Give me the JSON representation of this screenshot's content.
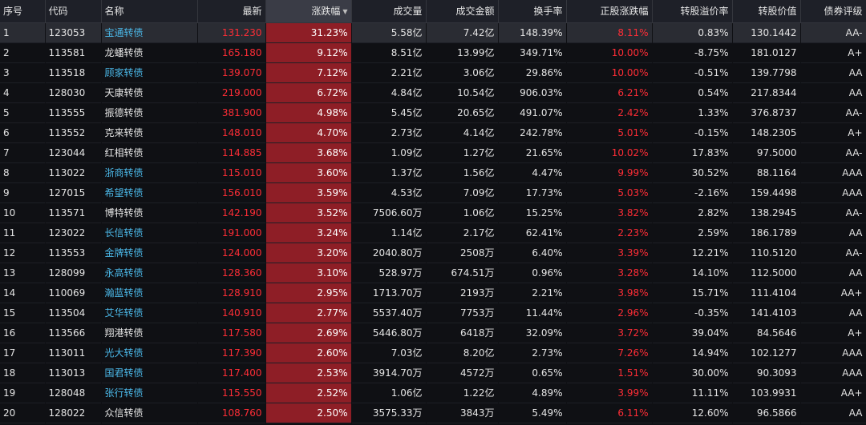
{
  "columns": [
    "序号",
    "代码",
    "名称",
    "最新",
    "涨跌幅",
    "成交量",
    "成交金额",
    "换手率",
    "正股涨跌幅",
    "转股溢价率",
    "转股价值",
    "债券评级"
  ],
  "sort_icon": "sort-desc-icon",
  "colors": {
    "up": "#ff2d36",
    "link": "#4bb8e8",
    "highlight": "#8e1e26",
    "header_bg": "#1e2028",
    "bg": "#0f1014"
  },
  "rows": [
    {
      "idx": "1",
      "code": "123053",
      "name": "宝通转债",
      "name_link": true,
      "price": "131.230",
      "change": "31.23%",
      "volume": "5.58亿",
      "amount": "7.42亿",
      "turnover": "148.39%",
      "stock_change": "8.11%",
      "premium": "0.83%",
      "conv_value": "130.1442",
      "rating": "AA-"
    },
    {
      "idx": "2",
      "code": "113581",
      "name": "龙蟠转债",
      "name_link": false,
      "price": "165.180",
      "change": "9.12%",
      "volume": "8.51亿",
      "amount": "13.99亿",
      "turnover": "349.71%",
      "stock_change": "10.00%",
      "premium": "-8.75%",
      "conv_value": "181.0127",
      "rating": "A+"
    },
    {
      "idx": "3",
      "code": "113518",
      "name": "顾家转债",
      "name_link": true,
      "price": "139.070",
      "change": "7.12%",
      "volume": "2.21亿",
      "amount": "3.06亿",
      "turnover": "29.86%",
      "stock_change": "10.00%",
      "premium": "-0.51%",
      "conv_value": "139.7798",
      "rating": "AA"
    },
    {
      "idx": "4",
      "code": "128030",
      "name": "天康转债",
      "name_link": false,
      "price": "219.000",
      "change": "6.72%",
      "volume": "4.84亿",
      "amount": "10.54亿",
      "turnover": "906.03%",
      "stock_change": "6.21%",
      "premium": "0.54%",
      "conv_value": "217.8344",
      "rating": "AA"
    },
    {
      "idx": "5",
      "code": "113555",
      "name": "振德转债",
      "name_link": false,
      "price": "381.900",
      "change": "4.98%",
      "volume": "5.45亿",
      "amount": "20.65亿",
      "turnover": "491.07%",
      "stock_change": "2.42%",
      "premium": "1.33%",
      "conv_value": "376.8737",
      "rating": "AA-"
    },
    {
      "idx": "6",
      "code": "113552",
      "name": "克来转债",
      "name_link": false,
      "price": "148.010",
      "change": "4.70%",
      "volume": "2.73亿",
      "amount": "4.14亿",
      "turnover": "242.78%",
      "stock_change": "5.01%",
      "premium": "-0.15%",
      "conv_value": "148.2305",
      "rating": "A+"
    },
    {
      "idx": "7",
      "code": "123044",
      "name": "红相转债",
      "name_link": false,
      "price": "114.885",
      "change": "3.68%",
      "volume": "1.09亿",
      "amount": "1.27亿",
      "turnover": "21.65%",
      "stock_change": "10.02%",
      "premium": "17.83%",
      "conv_value": "97.5000",
      "rating": "AA-"
    },
    {
      "idx": "8",
      "code": "113022",
      "name": "浙商转债",
      "name_link": true,
      "price": "115.010",
      "change": "3.60%",
      "volume": "1.37亿",
      "amount": "1.56亿",
      "turnover": "4.47%",
      "stock_change": "9.99%",
      "premium": "30.52%",
      "conv_value": "88.1164",
      "rating": "AAA"
    },
    {
      "idx": "9",
      "code": "127015",
      "name": "希望转债",
      "name_link": true,
      "price": "156.010",
      "change": "3.59%",
      "volume": "4.53亿",
      "amount": "7.09亿",
      "turnover": "17.73%",
      "stock_change": "5.03%",
      "premium": "-2.16%",
      "conv_value": "159.4498",
      "rating": "AAA"
    },
    {
      "idx": "10",
      "code": "113571",
      "name": "博特转债",
      "name_link": false,
      "price": "142.190",
      "change": "3.52%",
      "volume": "7506.60万",
      "amount": "1.06亿",
      "turnover": "15.25%",
      "stock_change": "3.82%",
      "premium": "2.82%",
      "conv_value": "138.2945",
      "rating": "AA-"
    },
    {
      "idx": "11",
      "code": "123022",
      "name": "长信转债",
      "name_link": true,
      "price": "191.000",
      "change": "3.24%",
      "volume": "1.14亿",
      "amount": "2.17亿",
      "turnover": "62.41%",
      "stock_change": "2.23%",
      "premium": "2.59%",
      "conv_value": "186.1789",
      "rating": "AA"
    },
    {
      "idx": "12",
      "code": "113553",
      "name": "金牌转债",
      "name_link": true,
      "price": "124.000",
      "change": "3.20%",
      "volume": "2040.80万",
      "amount": "2508万",
      "turnover": "6.40%",
      "stock_change": "3.39%",
      "premium": "12.21%",
      "conv_value": "110.5120",
      "rating": "AA-"
    },
    {
      "idx": "13",
      "code": "128099",
      "name": "永高转债",
      "name_link": true,
      "price": "128.360",
      "change": "3.10%",
      "volume": "528.97万",
      "amount": "674.51万",
      "turnover": "0.96%",
      "stock_change": "3.28%",
      "premium": "14.10%",
      "conv_value": "112.5000",
      "rating": "AA"
    },
    {
      "idx": "14",
      "code": "110069",
      "name": "瀚蓝转债",
      "name_link": true,
      "price": "128.910",
      "change": "2.95%",
      "volume": "1713.70万",
      "amount": "2193万",
      "turnover": "2.21%",
      "stock_change": "3.98%",
      "premium": "15.71%",
      "conv_value": "111.4104",
      "rating": "AA+"
    },
    {
      "idx": "15",
      "code": "113504",
      "name": "艾华转债",
      "name_link": true,
      "price": "140.910",
      "change": "2.77%",
      "volume": "5537.40万",
      "amount": "7753万",
      "turnover": "11.44%",
      "stock_change": "2.96%",
      "premium": "-0.35%",
      "conv_value": "141.4103",
      "rating": "AA"
    },
    {
      "idx": "16",
      "code": "113566",
      "name": "翔港转债",
      "name_link": false,
      "price": "117.580",
      "change": "2.69%",
      "volume": "5446.80万",
      "amount": "6418万",
      "turnover": "32.09%",
      "stock_change": "3.72%",
      "premium": "39.04%",
      "conv_value": "84.5646",
      "rating": "A+"
    },
    {
      "idx": "17",
      "code": "113011",
      "name": "光大转债",
      "name_link": true,
      "price": "117.390",
      "change": "2.60%",
      "volume": "7.03亿",
      "amount": "8.20亿",
      "turnover": "2.73%",
      "stock_change": "7.26%",
      "premium": "14.94%",
      "conv_value": "102.1277",
      "rating": "AAA"
    },
    {
      "idx": "18",
      "code": "113013",
      "name": "国君转债",
      "name_link": true,
      "price": "117.400",
      "change": "2.53%",
      "volume": "3914.70万",
      "amount": "4572万",
      "turnover": "0.65%",
      "stock_change": "1.51%",
      "premium": "30.00%",
      "conv_value": "90.3093",
      "rating": "AAA"
    },
    {
      "idx": "19",
      "code": "128048",
      "name": "张行转债",
      "name_link": true,
      "price": "115.550",
      "change": "2.52%",
      "volume": "1.06亿",
      "amount": "1.22亿",
      "turnover": "4.89%",
      "stock_change": "3.99%",
      "premium": "11.11%",
      "conv_value": "103.9931",
      "rating": "AA+"
    },
    {
      "idx": "20",
      "code": "128022",
      "name": "众信转债",
      "name_link": false,
      "price": "108.760",
      "change": "2.50%",
      "volume": "3575.33万",
      "amount": "3843万",
      "turnover": "5.49%",
      "stock_change": "6.11%",
      "premium": "12.60%",
      "conv_value": "96.5866",
      "rating": "AA"
    }
  ]
}
